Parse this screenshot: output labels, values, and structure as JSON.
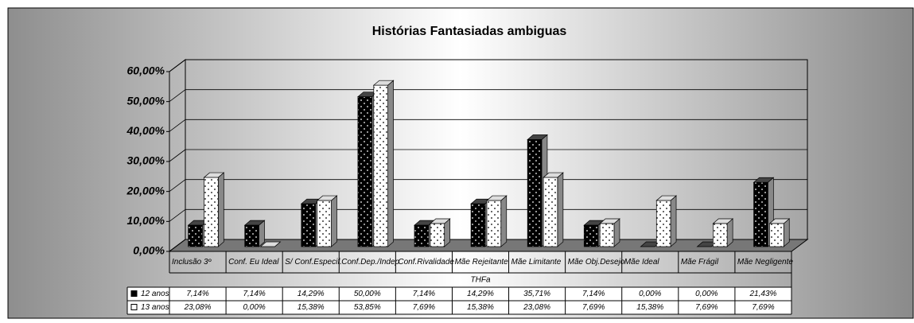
{
  "chart_data": {
    "type": "bar3d",
    "title": "Histórias Fantasiadas ambiguas",
    "x_label": "THFa",
    "categories": [
      "Inclusão 3º",
      "Conf. Eu Ideal",
      "S/ Conf.Especif.",
      "Conf.Dep./Indep",
      "Conf.Rivalidade",
      "Mãe Rejeitante",
      "Mãe Limitante",
      "Mãe Obj.Desejo",
      "Mãe Ideal",
      "Mãe Frágil",
      "Mãe Negligente"
    ],
    "series": [
      {
        "name": "12 anos",
        "color": "#000000",
        "values": [
          7.14,
          7.14,
          14.29,
          50.0,
          7.14,
          14.29,
          35.71,
          7.14,
          0,
          0,
          21.43
        ],
        "value_labels": [
          "7,14%",
          "7,14%",
          "14,29%",
          "50,00%",
          "7,14%",
          "14,29%",
          "35,71%",
          "7,14%",
          "0,00%",
          "0,00%",
          "21,43%"
        ]
      },
      {
        "name": "13 anos",
        "color": "#ffffff",
        "values": [
          23.08,
          0,
          15.38,
          53.85,
          7.69,
          15.38,
          23.08,
          7.69,
          15.38,
          7.69,
          7.69
        ],
        "value_labels": [
          "23,08%",
          "0,00%",
          "15,38%",
          "53,85%",
          "7,69%",
          "15,38%",
          "23,08%",
          "7,69%",
          "15,38%",
          "7,69%",
          "7,69%"
        ]
      }
    ],
    "ylim": [
      0,
      60
    ],
    "yticks": [
      {
        "value": 0,
        "label": "0,00%"
      },
      {
        "value": 10,
        "label": "10,00%"
      },
      {
        "value": 20,
        "label": "20,00%"
      },
      {
        "value": 30,
        "label": "30,00%"
      },
      {
        "value": 40,
        "label": "40,00%"
      },
      {
        "value": 50,
        "label": "50,00%"
      },
      {
        "value": 60,
        "label": "60,00%"
      }
    ],
    "grid": true
  }
}
